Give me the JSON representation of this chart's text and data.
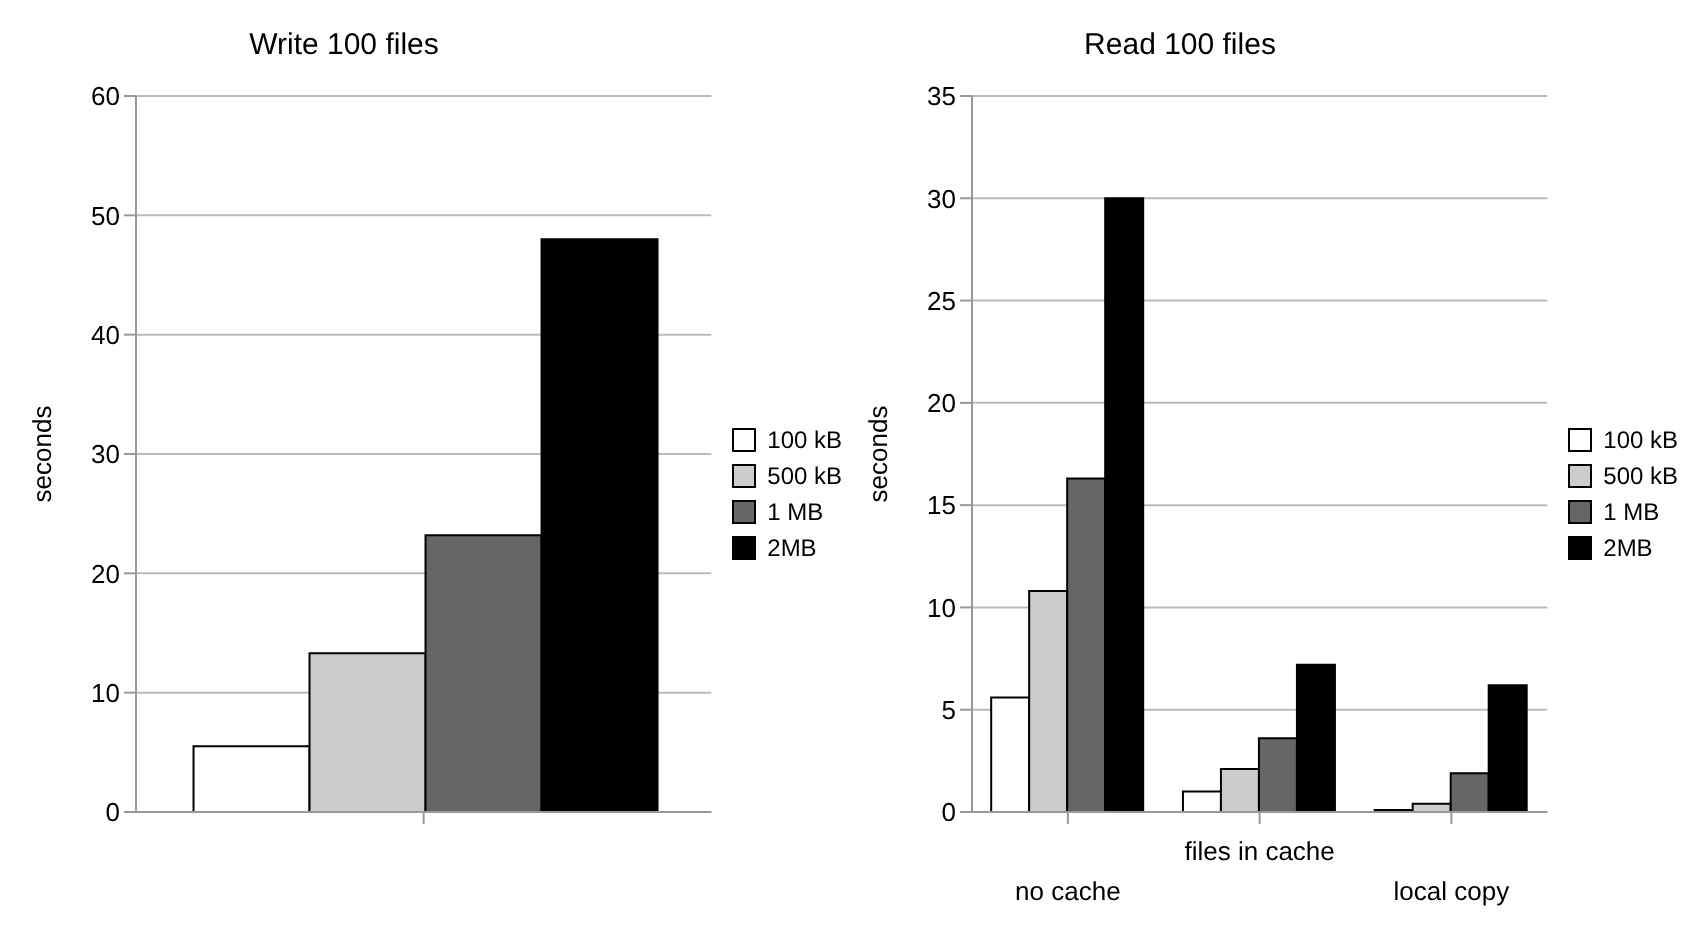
{
  "chart_data": [
    {
      "type": "bar",
      "title": "Write 100 files",
      "ylabel": "seconds",
      "categories": [
        null
      ],
      "series": [
        {
          "name": "100 kB",
          "color": "#ffffff",
          "values": [
            5.5
          ]
        },
        {
          "name": "500 kB",
          "color": "#cccccc",
          "values": [
            13.3
          ]
        },
        {
          "name": "1 MB",
          "color": "#666666",
          "values": [
            23.2
          ]
        },
        {
          "name": "2MB",
          "color": "#000000",
          "values": [
            48
          ]
        }
      ],
      "ylim": [
        0,
        60
      ],
      "yticks": [
        0,
        10,
        20,
        30,
        40,
        50,
        60
      ],
      "grid": "y",
      "legend": "right"
    },
    {
      "type": "bar",
      "title": "Read 100 files",
      "ylabel": "seconds",
      "categories": [
        "no cache",
        "files in cache",
        "local copy"
      ],
      "series": [
        {
          "name": "100 kB",
          "color": "#ffffff",
          "values": [
            5.6,
            1.0,
            0.1
          ]
        },
        {
          "name": "500 kB",
          "color": "#cccccc",
          "values": [
            10.8,
            2.1,
            0.4
          ]
        },
        {
          "name": "1 MB",
          "color": "#666666",
          "values": [
            16.3,
            3.6,
            1.9
          ]
        },
        {
          "name": "2MB",
          "color": "#000000",
          "values": [
            30,
            7.2,
            6.2
          ]
        }
      ],
      "ylim": [
        0,
        35
      ],
      "yticks": [
        0,
        5,
        10,
        15,
        20,
        25,
        30,
        35
      ],
      "grid": "y",
      "legend": "right"
    }
  ]
}
